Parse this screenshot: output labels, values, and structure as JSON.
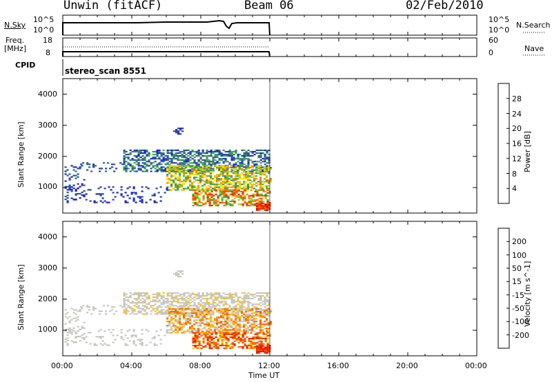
{
  "header": {
    "station": "Unwin (fitACF)",
    "beam": "Beam 06",
    "date": "02/Feb/2010"
  },
  "param_panel": {
    "nsky_label": "N.Sky",
    "nsky_ticks": [
      "10^5",
      "10^0"
    ],
    "nsearch_label": "N.Search",
    "freq_label": "Freq.",
    "freq_unit": "[MHz]",
    "freq_ticks": [
      "18",
      "8"
    ],
    "nave_label": "Nave",
    "nave_ticks": [
      "60",
      "0"
    ],
    "cpid_label": "CPID",
    "cpid_value": "stereo_scan 8551"
  },
  "colors": {
    "power": [
      "#1f22d6",
      "#2a48a8",
      "#2f6b7c",
      "#3c8f62",
      "#40b040",
      "#9fd320",
      "#f4e900",
      "#ffbf00",
      "#ff8000",
      "#f45a00",
      "#ea2a00",
      "#dd0000"
    ],
    "velocity": [
      "#e52000",
      "#f04200",
      "#f56a00",
      "#ff9a00",
      "#ffc400",
      "#c8c8c0",
      "#c8c8c0",
      "#7fd640",
      "#34a040",
      "#2e6a80",
      "#2050a0",
      "#1030c8"
    ],
    "frame": "#000000"
  },
  "chart_data": [
    {
      "type": "heatmap",
      "name": "power",
      "xlabel": "",
      "ylabel": "Slant Range [km]",
      "yticks": [
        "1000",
        "2000",
        "3000",
        "4000"
      ],
      "colorbar_title": "Power [dB]",
      "colorbar_ticks": [
        "4",
        "8",
        "12",
        "16",
        "20",
        "24",
        "28"
      ],
      "ylim": [
        180,
        4500
      ],
      "xlim_hours": [
        0,
        24
      ],
      "data_end_hours": 12.0
    },
    {
      "type": "heatmap",
      "name": "velocity",
      "xlabel": "Time UT",
      "ylabel": "Slant Range [km]",
      "yticks": [
        "1000",
        "2000",
        "3000",
        "4000"
      ],
      "colorbar_title": "Velocity [m s^-1]",
      "colorbar_ticks": [
        "200",
        "100",
        "50",
        "15",
        "-15",
        "-50",
        "-100",
        "-200"
      ],
      "ylim": [
        180,
        4500
      ],
      "xlim_hours": [
        0,
        24
      ],
      "xticks": [
        "00:00",
        "04:00",
        "08:00",
        "12:00",
        "16:00",
        "20:00",
        "00:00"
      ],
      "data_end_hours": 12.0
    }
  ]
}
